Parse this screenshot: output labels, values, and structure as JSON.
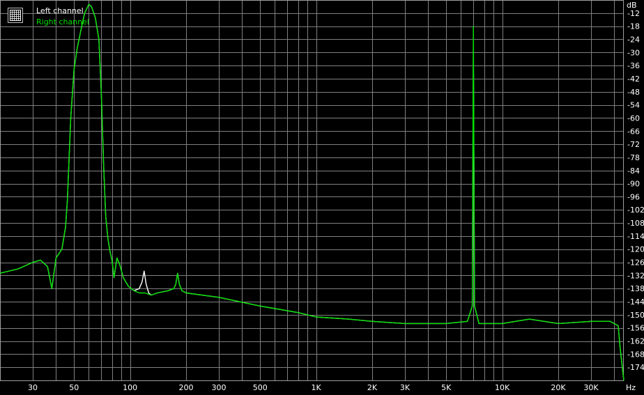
{
  "colors": {
    "background": "#000000",
    "grid": "#808080",
    "frame": "#a0a0a0",
    "left": "#ffffff",
    "right": "#00e000"
  },
  "legend": {
    "icon": "grid-icon",
    "placement": "top-left",
    "items": [
      "Left channel",
      "Right channel"
    ]
  },
  "chart_data": {
    "type": "line",
    "title": "",
    "xlabel": "Hz",
    "ylabel": "dB",
    "x_scale": "log",
    "xlim": [
      20,
      45000
    ],
    "ylim": [
      -180,
      -6
    ],
    "grid": true,
    "x_tick_labels": [
      {
        "value": 30,
        "label": "30"
      },
      {
        "value": 50,
        "label": "50"
      },
      {
        "value": 100,
        "label": "100"
      },
      {
        "value": 200,
        "label": "200"
      },
      {
        "value": 300,
        "label": "300"
      },
      {
        "value": 500,
        "label": "500"
      },
      {
        "value": 1000,
        "label": "1K"
      },
      {
        "value": 2000,
        "label": "2K"
      },
      {
        "value": 3000,
        "label": "3K"
      },
      {
        "value": 5000,
        "label": "5K"
      },
      {
        "value": 10000,
        "label": "10K"
      },
      {
        "value": 20000,
        "label": "20K"
      },
      {
        "value": 30000,
        "label": "30K"
      }
    ],
    "y_ticks": [
      -12,
      -18,
      -24,
      -30,
      -36,
      -42,
      -48,
      -54,
      -60,
      -66,
      -72,
      -78,
      -84,
      -90,
      -96,
      -102,
      -108,
      -114,
      -120,
      -126,
      -132,
      -138,
      -144,
      -150,
      -156,
      -162,
      -168,
      -174
    ],
    "series": [
      {
        "name": "Left channel",
        "points": [
          [
            20,
            -131
          ],
          [
            25,
            -129
          ],
          [
            30,
            -126
          ],
          [
            33,
            -125
          ],
          [
            36,
            -128
          ],
          [
            38,
            -138
          ],
          [
            40,
            -124
          ],
          [
            43,
            -120
          ],
          [
            45,
            -110
          ],
          [
            46,
            -98
          ],
          [
            48,
            -60
          ],
          [
            50,
            -38
          ],
          [
            52,
            -28
          ],
          [
            55,
            -18
          ],
          [
            57,
            -12
          ],
          [
            60,
            -8
          ],
          [
            62,
            -9
          ],
          [
            65,
            -14
          ],
          [
            68,
            -24
          ],
          [
            70,
            -48
          ],
          [
            72,
            -80
          ],
          [
            74,
            -105
          ],
          [
            76,
            -115
          ],
          [
            78,
            -121
          ],
          [
            80,
            -125
          ],
          [
            82,
            -133
          ],
          [
            85,
            -124
          ],
          [
            88,
            -127
          ],
          [
            92,
            -133
          ],
          [
            98,
            -137
          ],
          [
            105,
            -139
          ],
          [
            112,
            -138
          ],
          [
            116,
            -135
          ],
          [
            119,
            -130
          ],
          [
            122,
            -136
          ],
          [
            126,
            -140
          ],
          [
            130,
            -141
          ],
          [
            140,
            -140
          ],
          [
            160,
            -139
          ],
          [
            172,
            -138
          ],
          [
            176,
            -136
          ],
          [
            180,
            -131
          ],
          [
            184,
            -136
          ],
          [
            190,
            -139
          ],
          [
            200,
            -140
          ],
          [
            300,
            -142
          ],
          [
            500,
            -146
          ],
          [
            800,
            -149
          ],
          [
            1000,
            -151
          ],
          [
            1500,
            -152
          ],
          [
            2000,
            -153
          ],
          [
            3000,
            -154
          ],
          [
            5000,
            -154
          ],
          [
            6500,
            -153
          ],
          [
            6900,
            -146
          ],
          [
            7000,
            -28
          ],
          [
            7100,
            -146
          ],
          [
            7500,
            -154
          ],
          [
            10000,
            -154
          ],
          [
            14000,
            -152
          ],
          [
            20000,
            -154
          ],
          [
            30000,
            -153
          ],
          [
            38000,
            -153
          ],
          [
            42000,
            -155
          ],
          [
            43000,
            -165
          ],
          [
            45000,
            -180
          ]
        ]
      },
      {
        "name": "Right channel",
        "points": [
          [
            20,
            -131
          ],
          [
            25,
            -129
          ],
          [
            30,
            -126
          ],
          [
            33,
            -125
          ],
          [
            36,
            -128
          ],
          [
            38,
            -138
          ],
          [
            40,
            -124
          ],
          [
            43,
            -120
          ],
          [
            45,
            -110
          ],
          [
            46,
            -98
          ],
          [
            48,
            -60
          ],
          [
            50,
            -38
          ],
          [
            52,
            -28
          ],
          [
            55,
            -18
          ],
          [
            57,
            -12
          ],
          [
            60,
            -8
          ],
          [
            62,
            -9
          ],
          [
            65,
            -14
          ],
          [
            68,
            -24
          ],
          [
            70,
            -48
          ],
          [
            72,
            -80
          ],
          [
            74,
            -105
          ],
          [
            76,
            -115
          ],
          [
            78,
            -121
          ],
          [
            80,
            -125
          ],
          [
            82,
            -133
          ],
          [
            85,
            -124
          ],
          [
            88,
            -127
          ],
          [
            92,
            -133
          ],
          [
            98,
            -137
          ],
          [
            105,
            -139
          ],
          [
            112,
            -140
          ],
          [
            120,
            -140
          ],
          [
            130,
            -141
          ],
          [
            140,
            -140
          ],
          [
            160,
            -139
          ],
          [
            172,
            -138
          ],
          [
            176,
            -136
          ],
          [
            180,
            -131
          ],
          [
            184,
            -136
          ],
          [
            190,
            -139
          ],
          [
            200,
            -140
          ],
          [
            300,
            -142
          ],
          [
            500,
            -146
          ],
          [
            800,
            -149
          ],
          [
            1000,
            -151
          ],
          [
            1500,
            -152
          ],
          [
            2000,
            -153
          ],
          [
            3000,
            -154
          ],
          [
            5000,
            -154
          ],
          [
            6500,
            -153
          ],
          [
            6900,
            -146
          ],
          [
            7000,
            -18
          ],
          [
            7100,
            -146
          ],
          [
            7500,
            -154
          ],
          [
            10000,
            -154
          ],
          [
            14000,
            -152
          ],
          [
            20000,
            -154
          ],
          [
            30000,
            -153
          ],
          [
            38000,
            -153
          ],
          [
            42000,
            -155
          ],
          [
            43000,
            -165
          ],
          [
            45000,
            -180
          ]
        ]
      }
    ]
  }
}
